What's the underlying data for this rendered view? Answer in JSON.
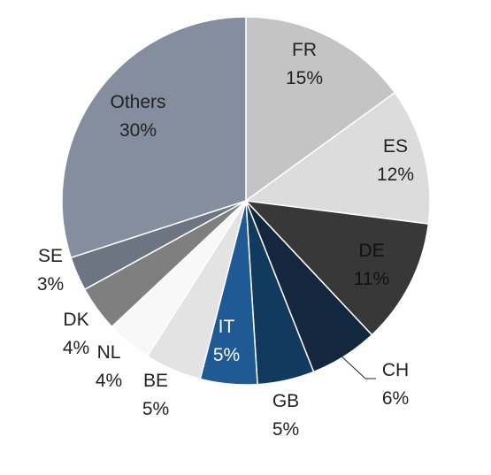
{
  "chart_data": {
    "type": "pie",
    "title": "",
    "slices": [
      {
        "label": "FR",
        "value": 15,
        "value_label": "15%",
        "color": "#c4c4c4",
        "text_color": "#222222"
      },
      {
        "label": "ES",
        "value": 12,
        "value_label": "12%",
        "color": "#dcdcdc",
        "text_color": "#222222"
      },
      {
        "label": "DE",
        "value": 11,
        "value_label": "11%",
        "color": "#383838",
        "text_color": "#111111"
      },
      {
        "label": "CH",
        "value": 6,
        "value_label": "6%",
        "color": "#13273f",
        "text_color": "#222222"
      },
      {
        "label": "GB",
        "value": 5,
        "value_label": "5%",
        "color": "#123a5e",
        "text_color": "#222222"
      },
      {
        "label": "IT",
        "value": 5,
        "value_label": "5%",
        "color": "#1f5a95",
        "text_color": "#ffffff"
      },
      {
        "label": "BE",
        "value": 5,
        "value_label": "5%",
        "color": "#e3e3e3",
        "text_color": "#222222"
      },
      {
        "label": "NL",
        "value": 4,
        "value_label": "4%",
        "color": "#f8f8f8",
        "text_color": "#222222"
      },
      {
        "label": "DK",
        "value": 4,
        "value_label": "4%",
        "color": "#7f7f7f",
        "text_color": "#222222"
      },
      {
        "label": "SE",
        "value": 3,
        "value_label": "3%",
        "color": "#6e7582",
        "text_color": "#222222"
      },
      {
        "label": "Others",
        "value": 30,
        "value_label": "30%",
        "color": "#858e9e",
        "text_color": "#222222"
      }
    ]
  }
}
